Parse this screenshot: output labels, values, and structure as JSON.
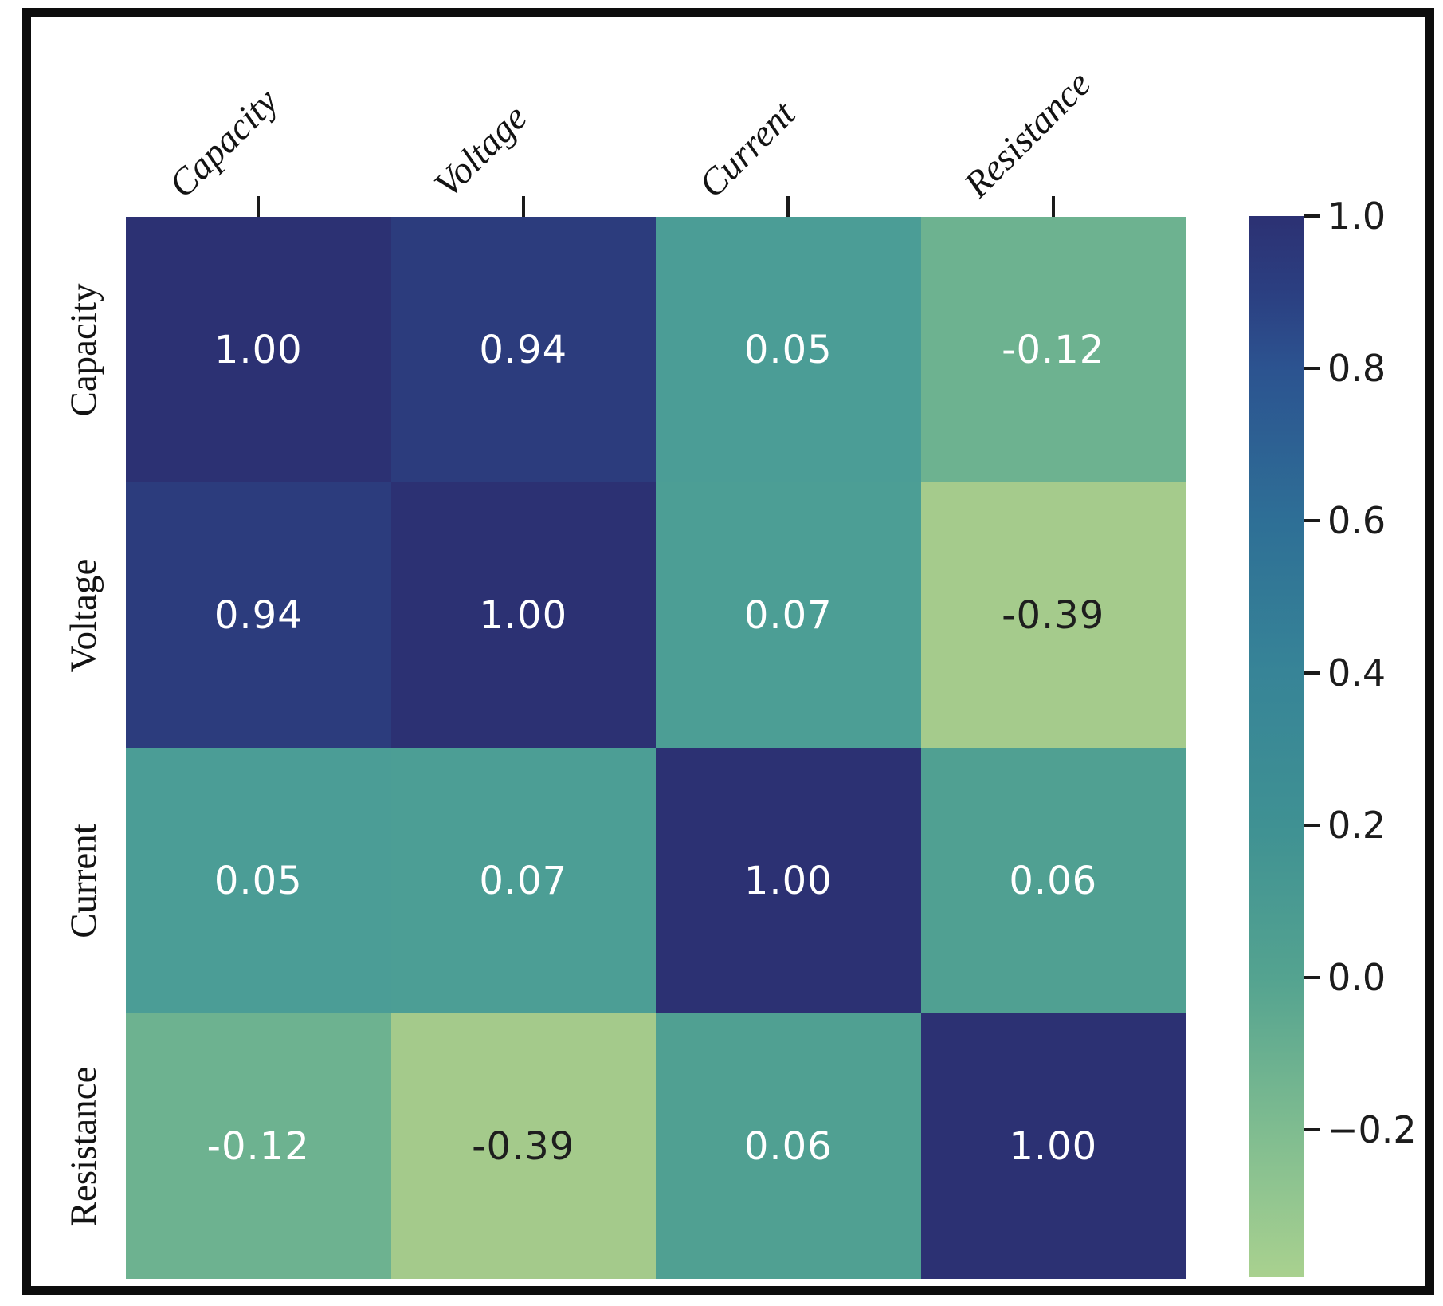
{
  "frame": {
    "border_color": "#0d0d0d",
    "background": "#ffffff"
  },
  "chart_data": {
    "type": "heatmap",
    "title": "",
    "colormap": "crest",
    "x_tick_labels": [
      "Capacity",
      "Voltage",
      "Current",
      "Resistance"
    ],
    "y_tick_labels": [
      "Capacity",
      "Voltage",
      "Current",
      "Resistance"
    ],
    "matrix": [
      [
        1.0,
        0.94,
        0.05,
        -0.12
      ],
      [
        0.94,
        1.0,
        0.07,
        -0.39
      ],
      [
        0.05,
        0.07,
        1.0,
        0.06
      ],
      [
        -0.12,
        -0.39,
        0.06,
        1.0
      ]
    ],
    "cells": [
      [
        {
          "label": "1.00",
          "bg": "#2c3173",
          "fg": "#ffffff"
        },
        {
          "label": "0.94",
          "bg": "#2c3c7d",
          "fg": "#ffffff"
        },
        {
          "label": "0.05",
          "bg": "#4b9d96",
          "fg": "#ffffff"
        },
        {
          "label": "-0.12",
          "bg": "#6db290",
          "fg": "#ffffff"
        }
      ],
      [
        {
          "label": "0.94",
          "bg": "#2c3c7d",
          "fg": "#ffffff"
        },
        {
          "label": "1.00",
          "bg": "#2c3173",
          "fg": "#ffffff"
        },
        {
          "label": "0.07",
          "bg": "#4c9e95",
          "fg": "#ffffff"
        },
        {
          "label": "-0.39",
          "bg": "#a5cb8c",
          "fg": "#1e1e1e"
        }
      ],
      [
        {
          "label": "0.05",
          "bg": "#4b9d96",
          "fg": "#ffffff"
        },
        {
          "label": "0.07",
          "bg": "#4c9e95",
          "fg": "#ffffff"
        },
        {
          "label": "1.00",
          "bg": "#2c3173",
          "fg": "#ffffff"
        },
        {
          "label": "0.06",
          "bg": "#50a092",
          "fg": "#ffffff"
        }
      ],
      [
        {
          "label": "-0.12",
          "bg": "#6db290",
          "fg": "#ffffff"
        },
        {
          "label": "-0.39",
          "bg": "#a4ca8b",
          "fg": "#1e1e1e"
        },
        {
          "label": "0.06",
          "bg": "#50a092",
          "fg": "#ffffff"
        },
        {
          "label": "1.00",
          "bg": "#2c3173",
          "fg": "#ffffff"
        }
      ]
    ],
    "colorbar": {
      "position": "right",
      "vmax": 1.0,
      "vmin": -0.394,
      "tick_labels": [
        "1.0",
        "0.8",
        "0.6",
        "0.4",
        "0.2",
        "0.0",
        "−0.2"
      ],
      "tick_values": [
        1.0,
        0.8,
        0.6,
        0.4,
        0.2,
        0.0,
        -0.2
      ],
      "gradient": [
        {
          "pos": 0.0,
          "color": "#2c3173"
        },
        {
          "pos": 0.072,
          "color": "#2b3f81"
        },
        {
          "pos": 0.143,
          "color": "#2c5390"
        },
        {
          "pos": 0.287,
          "color": "#2e6f96"
        },
        {
          "pos": 0.43,
          "color": "#378497"
        },
        {
          "pos": 0.574,
          "color": "#3f9193"
        },
        {
          "pos": 0.718,
          "color": "#54a390"
        },
        {
          "pos": 0.861,
          "color": "#7fbc90"
        },
        {
          "pos": 1.0,
          "color": "#a9d18f"
        }
      ]
    }
  }
}
